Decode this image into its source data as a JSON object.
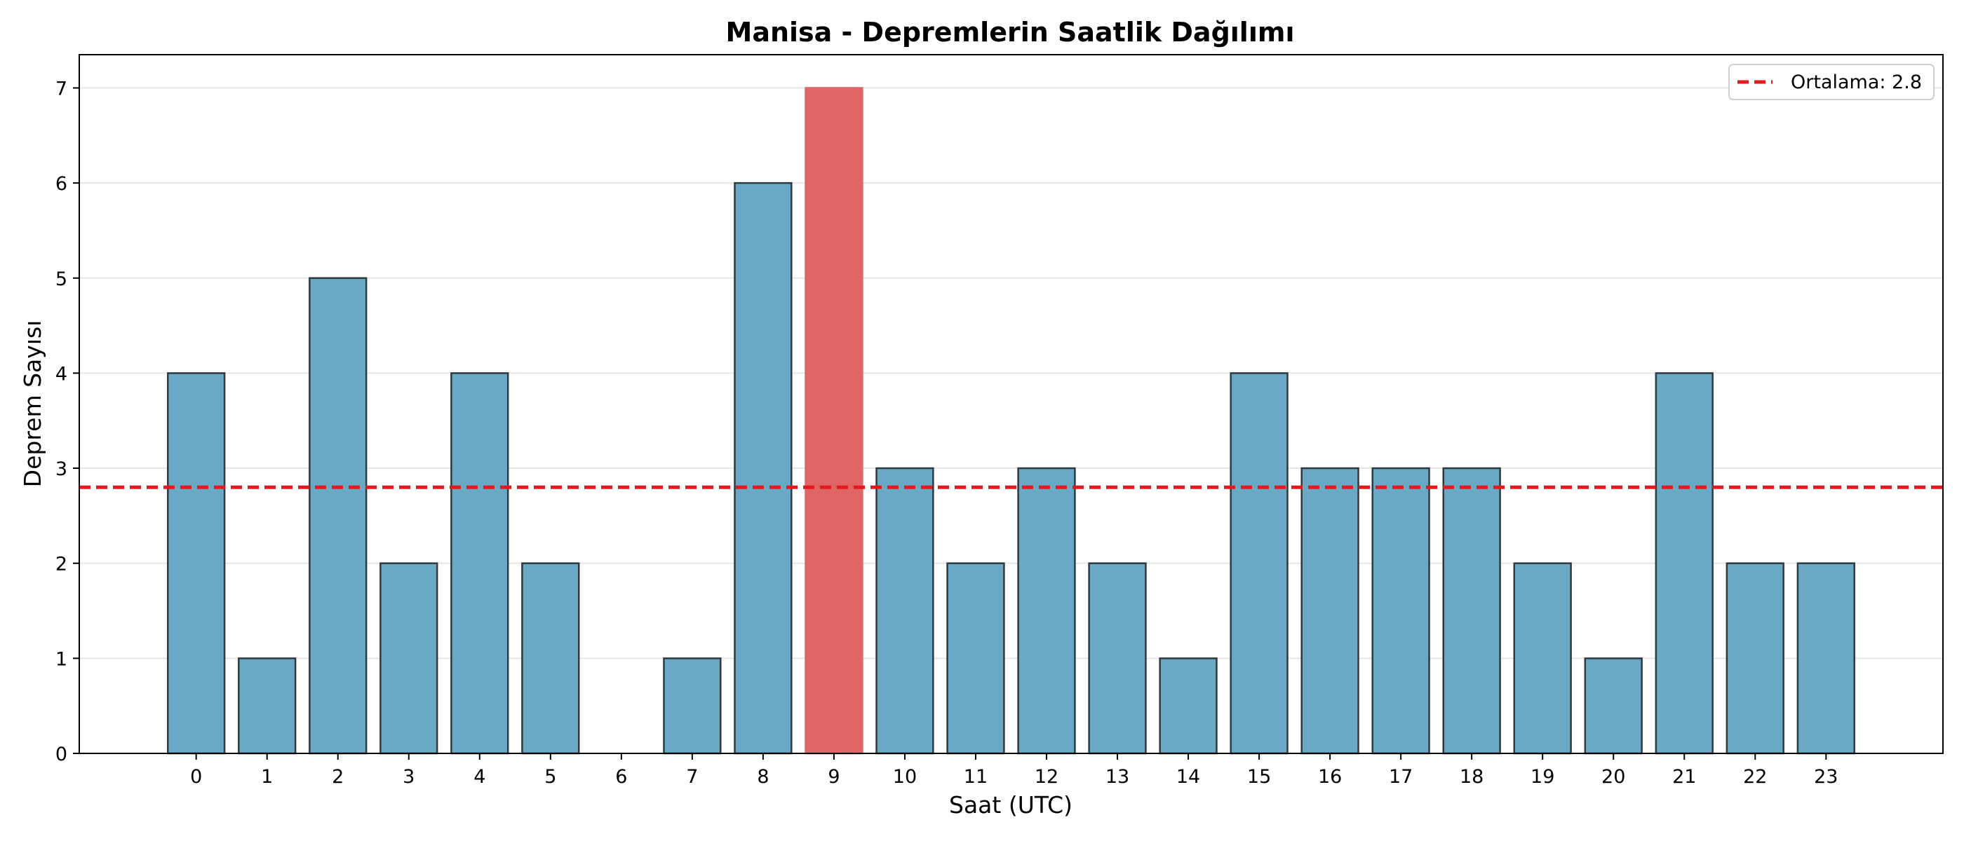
{
  "chart_data": {
    "type": "bar",
    "title": "Manisa - Depremlerin Saatlik Dağılımı",
    "xlabel": "Saat (UTC)",
    "ylabel": "Deprem Sayısı",
    "categories": [
      "0",
      "1",
      "2",
      "3",
      "4",
      "5",
      "6",
      "7",
      "8",
      "9",
      "10",
      "11",
      "12",
      "13",
      "14",
      "15",
      "16",
      "17",
      "18",
      "19",
      "20",
      "21",
      "22",
      "23"
    ],
    "values": [
      4,
      1,
      5,
      2,
      4,
      2,
      0,
      1,
      6,
      7,
      3,
      2,
      3,
      2,
      1,
      4,
      3,
      3,
      3,
      2,
      1,
      4,
      2,
      2
    ],
    "highlight_index": 9,
    "ylim": [
      0,
      7.35
    ],
    "yticks": [
      "0",
      "1",
      "2",
      "3",
      "4",
      "5",
      "6",
      "7"
    ],
    "xlim": [
      -1.65,
      24.65
    ],
    "grid": "horizontal",
    "reference_line": {
      "label": "Ortalama: 2.8",
      "value": 2.8,
      "style": "dashed"
    },
    "legend": {
      "placement": "top-right"
    },
    "colors": {
      "bar": "#6aa9c5",
      "highlight": "#e06666",
      "edge": "#2f3a40",
      "mean_line": "#e31a1c",
      "grid": "#e6e6e6"
    }
  }
}
